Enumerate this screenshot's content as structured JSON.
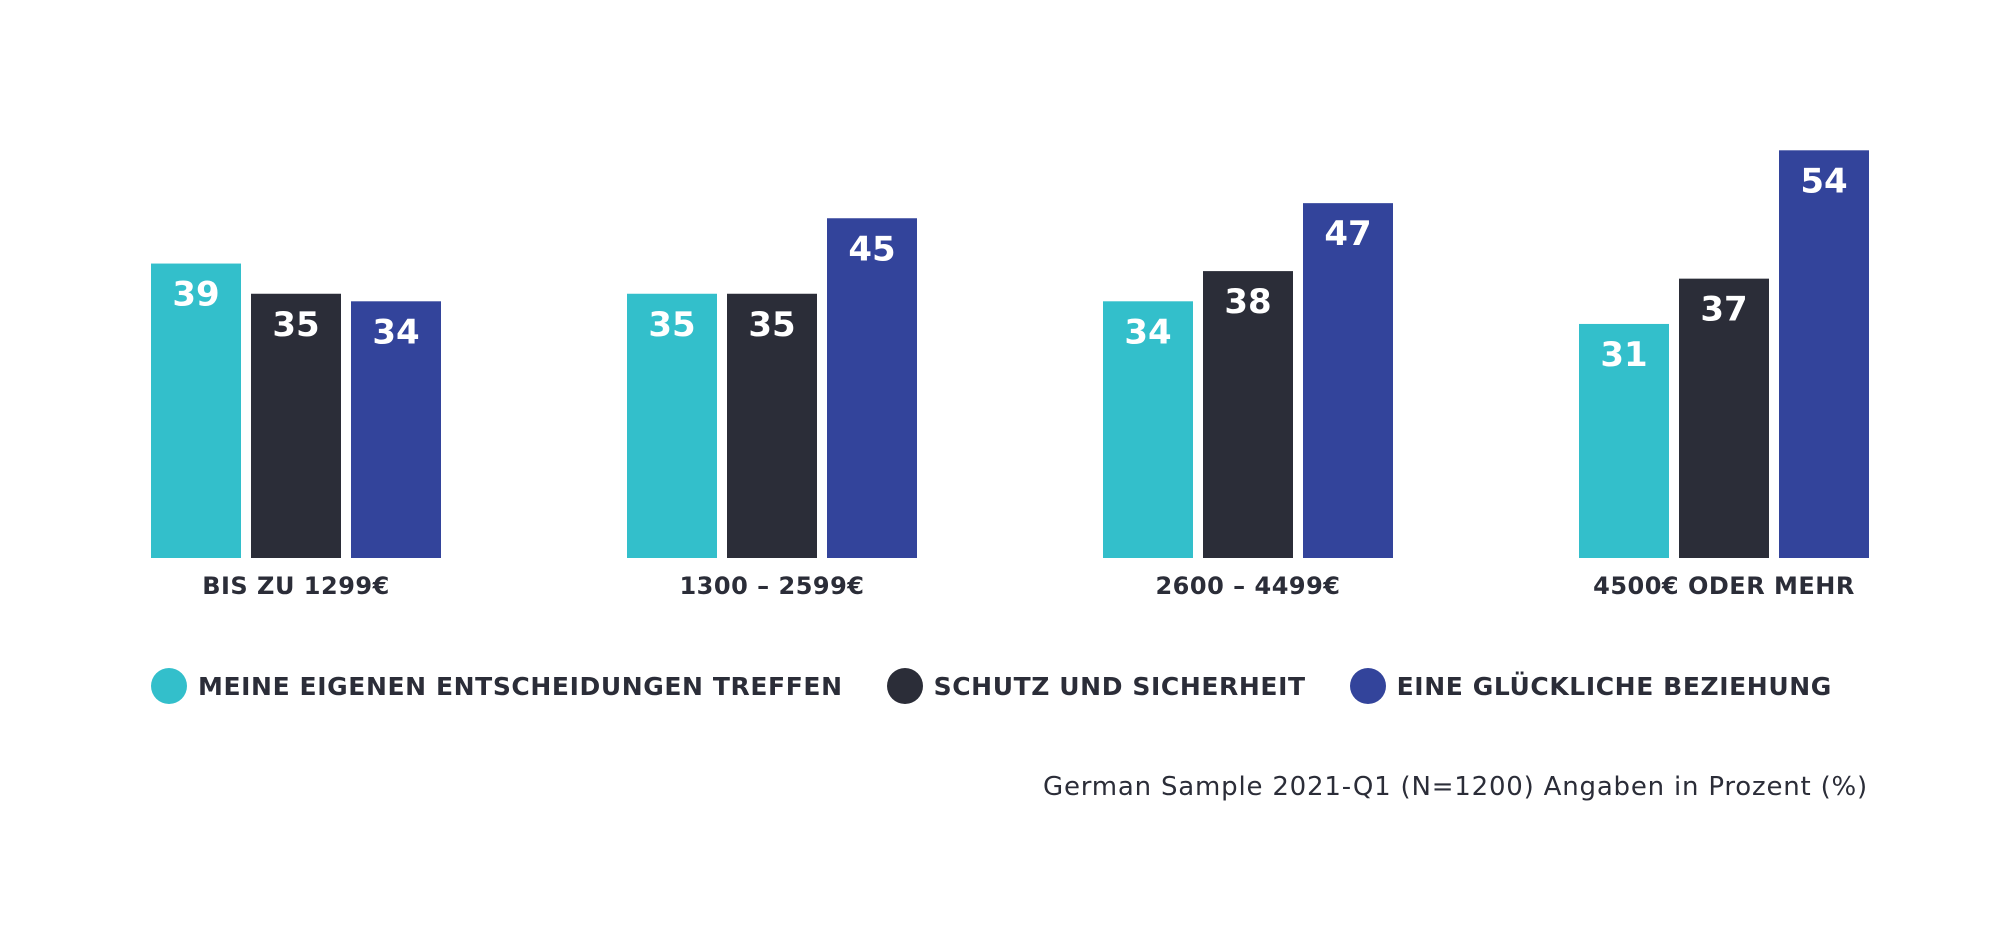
{
  "chart_data": {
    "type": "bar",
    "categories": [
      "BIS ZU 1299€",
      "1300 – 2599€",
      "2600 – 4499€",
      "4500€ ODER MEHR"
    ],
    "series": [
      {
        "name": "MEINE EIGENEN ENTSCHEIDUNGEN TREFFEN",
        "values": [
          39,
          35,
          34,
          31
        ],
        "color": "#33bfcb"
      },
      {
        "name": "SCHUTZ UND SICHERHEIT",
        "values": [
          35,
          35,
          38,
          37
        ],
        "color": "#2b2d38"
      },
      {
        "name": "EINE GLÜCKLICHE BEZIEHUNG",
        "values": [
          34,
          45,
          47,
          54
        ],
        "color": "#33449b"
      }
    ],
    "ylim": [
      0,
      54
    ],
    "grid": false,
    "legend_position": "bottom-left",
    "data_labels": true
  },
  "footnote": "German Sample 2021-Q1 (N=1200) Angaben in Prozent (%)"
}
